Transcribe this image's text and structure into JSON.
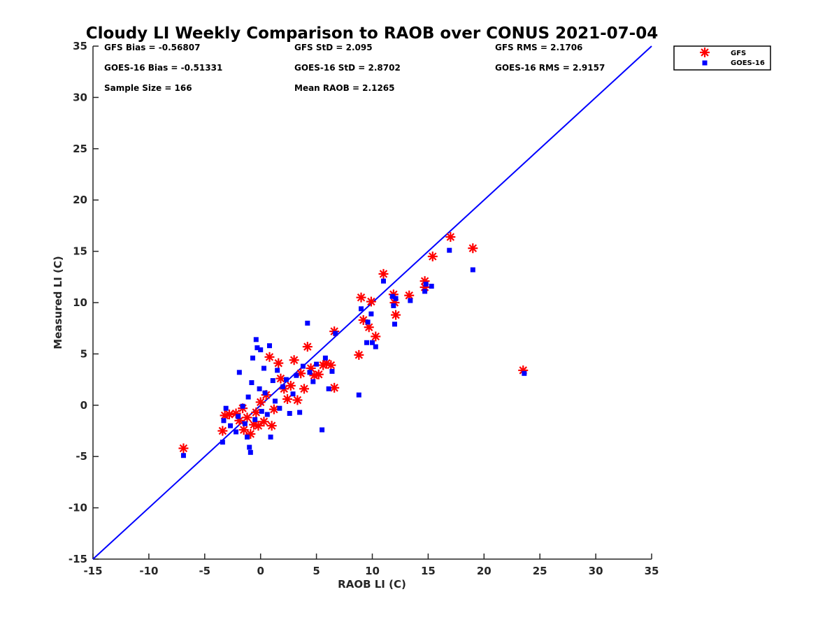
{
  "chart_data": {
    "type": "scatter",
    "title": "Cloudy LI Weekly Comparison to RAOB over CONUS 2021-07-04",
    "xlabel": "RAOB LI (C)",
    "ylabel": "Measured LI (C)",
    "xlim": [
      -15,
      35
    ],
    "ylim": [
      -15,
      35
    ],
    "xticks": [
      "-15",
      "-10",
      "-5",
      "0",
      "5",
      "10",
      "15",
      "20",
      "25",
      "30",
      "35"
    ],
    "yticks": [
      "-15",
      "-10",
      "-5",
      "0",
      "5",
      "10",
      "15",
      "20",
      "25",
      "30",
      "35"
    ],
    "grid": false,
    "legend_position": "top-right",
    "reference_line": {
      "type": "one-to-one",
      "from": [
        -15,
        -15
      ],
      "to": [
        35,
        35
      ],
      "color": "#0000ff"
    },
    "stats": [
      [
        "GFS Bias = -0.56807",
        "GFS StD = 2.095",
        "GFS RMS = 2.1706"
      ],
      [
        "GOES-16 Bias = -0.51331",
        "GOES-16 StD = 2.8702",
        "GOES-16 RMS = 2.9157"
      ],
      [
        "Sample Size = 166",
        "Mean RAOB = 2.1265",
        ""
      ]
    ],
    "series": [
      {
        "name": "GFS",
        "marker": "asterisk",
        "color": "#ff0000",
        "points": [
          [
            -6.9,
            -4.2
          ],
          [
            -3.4,
            -2.5
          ],
          [
            -3.2,
            -1.0
          ],
          [
            -2.8,
            -0.9
          ],
          [
            -2.2,
            -0.8
          ],
          [
            -1.9,
            -1.5
          ],
          [
            -1.6,
            -0.3
          ],
          [
            -1.5,
            -2.4
          ],
          [
            -1.2,
            -1.2
          ],
          [
            -0.9,
            -2.8
          ],
          [
            -0.6,
            -1.9
          ],
          [
            -0.4,
            -0.7
          ],
          [
            -0.2,
            -2.0
          ],
          [
            0.0,
            0.3
          ],
          [
            0.3,
            -1.6
          ],
          [
            0.5,
            1.0
          ],
          [
            0.8,
            4.7
          ],
          [
            1.0,
            -2.0
          ],
          [
            1.2,
            -0.4
          ],
          [
            1.6,
            4.1
          ],
          [
            1.8,
            2.6
          ],
          [
            2.1,
            1.6
          ],
          [
            2.4,
            0.6
          ],
          [
            2.7,
            1.9
          ],
          [
            3.0,
            4.4
          ],
          [
            3.3,
            0.5
          ],
          [
            3.6,
            3.1
          ],
          [
            3.9,
            1.6
          ],
          [
            4.2,
            5.7
          ],
          [
            4.5,
            3.6
          ],
          [
            4.8,
            2.9
          ],
          [
            5.2,
            3.0
          ],
          [
            5.6,
            3.9
          ],
          [
            5.9,
            4.1
          ],
          [
            6.3,
            3.9
          ],
          [
            6.6,
            1.7
          ],
          [
            6.6,
            7.2
          ],
          [
            8.8,
            4.9
          ],
          [
            9.0,
            10.5
          ],
          [
            9.2,
            8.3
          ],
          [
            9.7,
            7.6
          ],
          [
            9.9,
            10.1
          ],
          [
            10.3,
            6.7
          ],
          [
            11.0,
            12.8
          ],
          [
            11.9,
            10.8
          ],
          [
            12.0,
            10.0
          ],
          [
            12.1,
            8.8
          ],
          [
            13.3,
            10.7
          ],
          [
            14.7,
            11.5
          ],
          [
            14.7,
            12.1
          ],
          [
            15.4,
            14.5
          ],
          [
            17.0,
            16.4
          ],
          [
            19.0,
            15.3
          ],
          [
            23.5,
            3.4
          ]
        ]
      },
      {
        "name": "GOES-16",
        "marker": "square",
        "color": "#0000ff",
        "points": [
          [
            -6.9,
            -4.9
          ],
          [
            -3.4,
            -3.6
          ],
          [
            -3.3,
            -1.5
          ],
          [
            -3.1,
            -0.3
          ],
          [
            -2.7,
            -2.0
          ],
          [
            -2.2,
            -2.6
          ],
          [
            -2.0,
            -1.1
          ],
          [
            -1.9,
            3.2
          ],
          [
            -1.6,
            -0.1
          ],
          [
            -1.4,
            -1.8
          ],
          [
            -1.2,
            -3.1
          ],
          [
            -1.1,
            0.8
          ],
          [
            -1.0,
            -4.1
          ],
          [
            -0.9,
            -4.6
          ],
          [
            -0.8,
            2.2
          ],
          [
            -0.7,
            4.6
          ],
          [
            -0.5,
            -1.4
          ],
          [
            -0.4,
            6.4
          ],
          [
            -0.3,
            5.6
          ],
          [
            -0.1,
            1.6
          ],
          [
            0.0,
            5.4
          ],
          [
            0.1,
            -0.6
          ],
          [
            0.3,
            3.6
          ],
          [
            0.4,
            1.2
          ],
          [
            0.6,
            -0.9
          ],
          [
            0.8,
            5.8
          ],
          [
            0.9,
            -3.1
          ],
          [
            1.1,
            2.4
          ],
          [
            1.3,
            0.4
          ],
          [
            1.5,
            3.4
          ],
          [
            1.7,
            -0.3
          ],
          [
            2.0,
            1.8
          ],
          [
            2.3,
            2.5
          ],
          [
            2.6,
            -0.8
          ],
          [
            2.9,
            1.1
          ],
          [
            3.2,
            2.9
          ],
          [
            3.5,
            -0.7
          ],
          [
            3.8,
            3.8
          ],
          [
            4.2,
            8.0
          ],
          [
            4.4,
            3.2
          ],
          [
            4.7,
            2.3
          ],
          [
            5.0,
            4.0
          ],
          [
            5.5,
            -2.4
          ],
          [
            5.8,
            4.6
          ],
          [
            6.1,
            1.6
          ],
          [
            6.4,
            3.3
          ],
          [
            6.7,
            7.0
          ],
          [
            8.8,
            1.0
          ],
          [
            9.0,
            9.4
          ],
          [
            9.5,
            6.1
          ],
          [
            9.6,
            8.1
          ],
          [
            9.9,
            8.9
          ],
          [
            10.0,
            6.1
          ],
          [
            10.3,
            5.7
          ],
          [
            11.0,
            12.1
          ],
          [
            11.8,
            10.6
          ],
          [
            11.9,
            9.7
          ],
          [
            12.0,
            7.9
          ],
          [
            12.1,
            10.4
          ],
          [
            13.4,
            10.2
          ],
          [
            14.7,
            11.1
          ],
          [
            14.8,
            11.8
          ],
          [
            15.3,
            11.6
          ],
          [
            16.9,
            15.1
          ],
          [
            19.0,
            13.2
          ],
          [
            23.6,
            3.1
          ]
        ]
      }
    ]
  }
}
